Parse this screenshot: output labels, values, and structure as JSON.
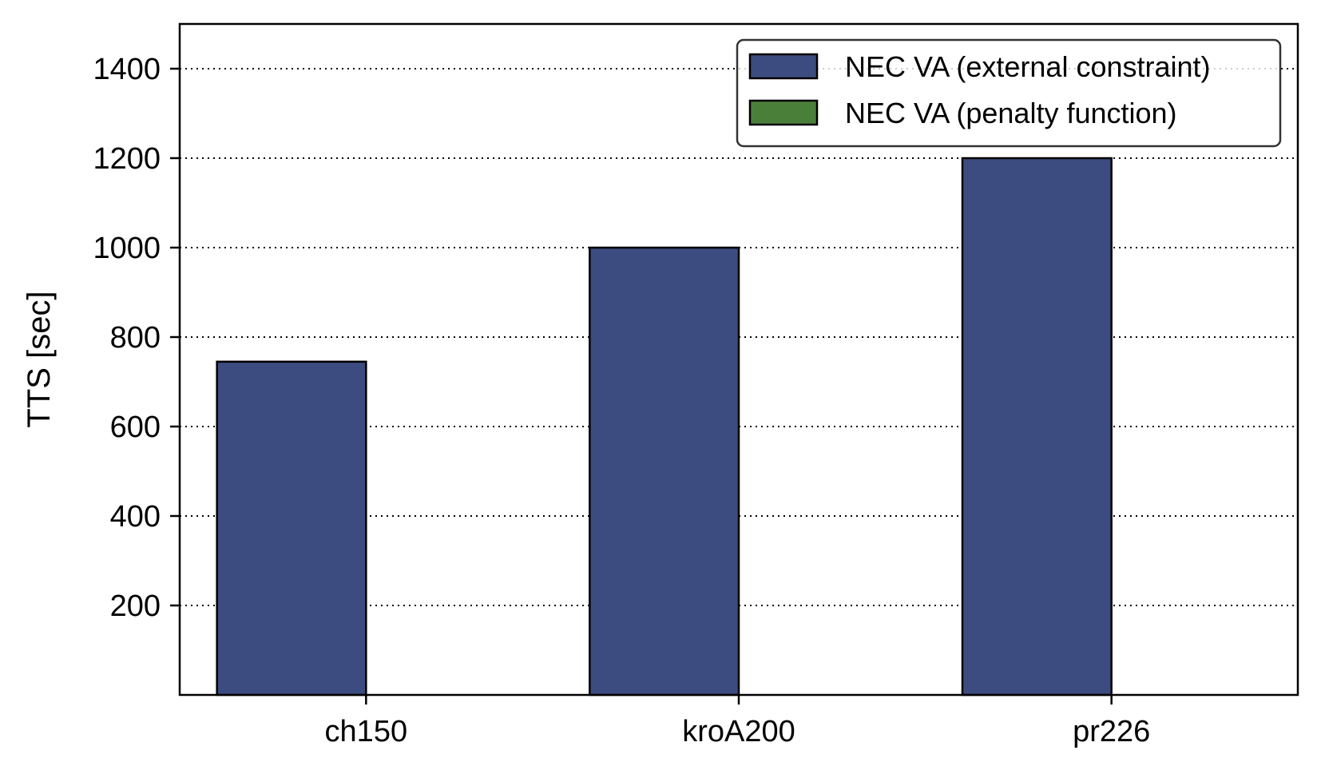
{
  "chart_data": {
    "type": "bar",
    "categories": [
      "ch150",
      "kroA200",
      "pr226"
    ],
    "series": [
      {
        "name": "NEC VA (external constraint)",
        "values": [
          745,
          1000,
          1200
        ],
        "color": "#3c4c80"
      },
      {
        "name": "NEC VA (penalty function)",
        "values": [
          0,
          0,
          0
        ],
        "color": "#4a7f3a"
      }
    ],
    "xlabel": "",
    "ylabel": "TTS [sec]",
    "ylim": [
      0,
      1500
    ],
    "yticks": [
      200,
      400,
      600,
      800,
      1000,
      1200,
      1400
    ],
    "grid": "y-dotted",
    "legend_position": "top-right"
  }
}
